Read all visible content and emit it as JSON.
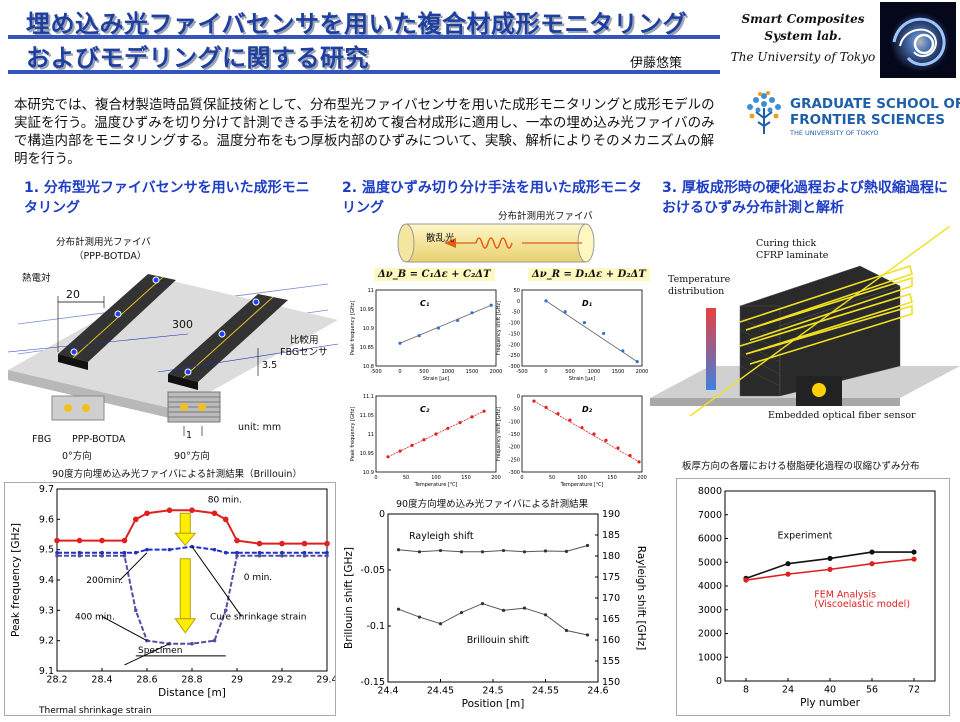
{
  "header": {
    "title_line1": "埋め込み光ファイバセンサを用いた複合材成形モニタリング",
    "title_line2": "およびモデリングに関する研究",
    "author": "伊藤悠策",
    "lab_line1": "Smart Composites",
    "lab_line2": "System lab.",
    "lab_line3": "The University of Tokyo"
  },
  "logo": {
    "line1": "GRADUATE SCHOOL OF",
    "line2": "FRONTIER SCIENCES",
    "line3": "THE UNIVERSITY OF TOKYO",
    "color": "#1f5fa8"
  },
  "intro": "本研究では、複合材製造時品質保証技術として、分布型光ファイバセンサを用いた成形モニタリングと成形モデルの実証を行う。温度ひずみを切り分けて計測できる手法を初めて複合材成形に適用し、一本の埋め込み光ファイバのみで構造内部をモニタリングする。温度分布をもつ厚板内部のひずみについて、実験、解析によりそのメカニズムの解明を行う。",
  "sections": {
    "s1_title": "1. 分布型光ファイバセンサを用いた成形モニタリング",
    "s2_title": "2. 温度ひずみ切り分け手法を用いた成形モニタリング",
    "s3_title": "3. 厚板成形時の硬化過程および熱収縮過程におけるひずみ分布計測と解析"
  },
  "fig1": {
    "label_fiber": "分布計測用光ファイバ",
    "label_fiber2": "（PPP-BOTDA）",
    "label_thermocouple": "熱電対",
    "dim_20": "20",
    "dim_300": "300",
    "dim_35": "3.5",
    "label_fbg_compare": "比較用",
    "label_fbg_compare2": "FBGセンサ",
    "label_fbg": "FBG",
    "label_ppp": "PPP-BOTDA",
    "dim_1": "1",
    "label_0deg": "0°方向",
    "label_90deg": "90°方向",
    "unit": "unit: mm"
  },
  "chart1_caption": "90度方向埋め込み光ファイバによる計測結果（Brillouin）",
  "chart2_caption": "90度方向埋め込み光ファイバによる計測結果",
  "chart3_caption": "板厚方向の各層における樹脂硬化過程の収縮ひずみ分布",
  "fig2": {
    "scatter_label": "散乱光",
    "fiber_label": "分布計測用光ファイバ",
    "eq1": "Δν_B = C₁Δε + C₂ΔT",
    "eq2": "Δν_R = D₁Δε + D₂ΔT"
  },
  "fig3": {
    "label_curing": "Curing thick",
    "label_curing2": "CFRP laminate",
    "label_temp": "Temperature",
    "label_temp2": "distribution",
    "label_sensor": "Embedded optical fiber sensor"
  },
  "chart_data": [
    {
      "id": "chart1",
      "type": "line",
      "xlabel": "Distance [m]",
      "ylabel": "Peak frequency [GHz]",
      "xlim": [
        28.2,
        29.4
      ],
      "ylim": [
        9.1,
        9.7
      ],
      "xticks": [
        "28.2",
        "28.4",
        "28.6",
        "28.8",
        "29",
        "29.2",
        "29.4"
      ],
      "yticks": [
        "9.1",
        "9.2",
        "9.3",
        "9.4",
        "9.5",
        "9.6",
        "9.7"
      ],
      "annotations": [
        "80 min.",
        "0 min.",
        "200min.",
        "400 min.",
        "Cure shrinkage strain",
        "Specimen",
        "Thermal shrinkage strain"
      ],
      "series": [
        {
          "color": "#e02020",
          "x": [
            28.2,
            28.3,
            28.4,
            28.5,
            28.55,
            28.6,
            28.7,
            28.8,
            28.9,
            28.95,
            29.0,
            29.1,
            29.2,
            29.3,
            29.4
          ],
          "values": [
            9.53,
            9.53,
            9.53,
            9.53,
            9.6,
            9.62,
            9.63,
            9.63,
            9.62,
            9.6,
            9.53,
            9.52,
            9.52,
            9.52,
            9.52
          ]
        },
        {
          "color": "#2030c0",
          "x": [
            28.2,
            28.3,
            28.4,
            28.5,
            28.55,
            28.6,
            28.7,
            28.8,
            28.9,
            28.95,
            29.0,
            29.1,
            29.2,
            29.3,
            29.4
          ],
          "values": [
            9.49,
            9.49,
            9.49,
            9.49,
            9.49,
            9.5,
            9.5,
            9.51,
            9.5,
            9.49,
            9.49,
            9.49,
            9.49,
            9.49,
            9.49
          ]
        },
        {
          "color": "#5050a0",
          "x": [
            28.2,
            28.3,
            28.4,
            28.5,
            28.55,
            28.6,
            28.7,
            28.8,
            28.9,
            28.95,
            29.0,
            29.1,
            29.2,
            29.3,
            29.4
          ],
          "values": [
            9.48,
            9.48,
            9.48,
            9.48,
            9.3,
            9.2,
            9.19,
            9.19,
            9.2,
            9.3,
            9.48,
            9.48,
            9.48,
            9.48,
            9.48
          ]
        }
      ]
    },
    {
      "id": "chart2",
      "type": "line",
      "xlabel": "Position [m]",
      "ylabel": "Brillouin shift [GHz]",
      "ylabel_right": "Rayleigh shift [GHz]",
      "xlim": [
        24.4,
        24.6
      ],
      "ylim": [
        -0.15,
        0.0
      ],
      "ylim_right": [
        150,
        190
      ],
      "xticks": [
        "24.4",
        "24.45",
        "24.5",
        "24.55",
        "24.6"
      ],
      "yticks": [
        "-0.15",
        "-0.1",
        "-0.05",
        "0"
      ],
      "yticks_right": [
        "150",
        "155",
        "160",
        "165",
        "170",
        "175",
        "180",
        "185",
        "190"
      ],
      "annotations": [
        "Rayleigh shift",
        "Brillouin shift"
      ],
      "series": [
        {
          "name": "Rayleigh shift",
          "axis": "right",
          "x": [
            24.41,
            24.43,
            24.45,
            24.47,
            24.49,
            24.51,
            24.53,
            24.55,
            24.57,
            24.59
          ],
          "values": [
            181.5,
            181.0,
            181.3,
            181.0,
            181.0,
            181.3,
            181.0,
            181.2,
            181.1,
            182.5
          ]
        },
        {
          "name": "Brillouin shift",
          "axis": "left",
          "x": [
            24.41,
            24.43,
            24.45,
            24.47,
            24.49,
            24.51,
            24.53,
            24.55,
            24.57,
            24.59
          ],
          "values": [
            -0.085,
            -0.092,
            -0.098,
            -0.088,
            -0.08,
            -0.086,
            -0.084,
            -0.09,
            -0.104,
            -0.108
          ]
        }
      ]
    },
    {
      "id": "chart3",
      "type": "line",
      "xlabel": "Ply number",
      "xlim": [
        0,
        80
      ],
      "ylim": [
        0,
        8000
      ],
      "xticks": [
        "8",
        "24",
        "40",
        "56",
        "72"
      ],
      "yticks": [
        "0",
        "1000",
        "2000",
        "3000",
        "4000",
        "5000",
        "6000",
        "7000",
        "8000"
      ],
      "series": [
        {
          "name": "Experiment",
          "color": "#111111",
          "x": [
            8,
            24,
            40,
            56,
            72
          ],
          "values": [
            4320,
            4940,
            5160,
            5430,
            5430
          ]
        },
        {
          "name": "FEM Analysis (Viscoelastic model)",
          "color": "#e02020",
          "x": [
            8,
            24,
            40,
            56,
            72
          ],
          "values": [
            4250,
            4500,
            4700,
            4940,
            5130
          ]
        }
      ],
      "legend_text_1": "FEM Analysis",
      "legend_text_2": "(Viscoelastic model)"
    },
    {
      "id": "mini_c1",
      "type": "scatter",
      "xlabel": "Strain [με]",
      "ylabel": "Peak frequency [GHz]",
      "label": "C₁",
      "xticks": [
        "-500",
        "0",
        "500",
        "1000",
        "1500",
        "2000"
      ],
      "yticks": [
        "10.8",
        "10.85",
        "10.9",
        "10.95",
        "11"
      ],
      "xlim": [
        -500,
        2000
      ],
      "ylim": [
        10.8,
        11.0
      ],
      "x": [
        0,
        400,
        800,
        1200,
        1500,
        1900
      ],
      "values": [
        10.86,
        10.88,
        10.9,
        10.92,
        10.94,
        10.96
      ]
    },
    {
      "id": "mini_d1",
      "type": "scatter",
      "xlabel": "Strain [με]",
      "ylabel": "Frequency shift [GHz]",
      "label": "D₁",
      "xticks": [
        "-500",
        "0",
        "500",
        "1000",
        "1500",
        "2000"
      ],
      "yticks": [
        "-300",
        "-250",
        "-200",
        "-150",
        "-100",
        "-50",
        "0",
        "50"
      ],
      "xlim": [
        -500,
        2000
      ],
      "ylim": [
        -300,
        50
      ],
      "x": [
        0,
        400,
        800,
        1200,
        1600,
        1900
      ],
      "values": [
        0,
        -50,
        -100,
        -150,
        -230,
        -280
      ]
    },
    {
      "id": "mini_c2",
      "type": "scatter",
      "xlabel": "Temperature [℃]",
      "ylabel": "Peak frequency [GHz]",
      "label": "C₂",
      "xticks": [
        "0",
        "50",
        "100",
        "150",
        "200"
      ],
      "yticks": [
        "10.9",
        "10.95",
        "11",
        "11.05",
        "11.1"
      ],
      "xlim": [
        0,
        200
      ],
      "ylim": [
        10.9,
        11.1
      ],
      "x": [
        20,
        40,
        60,
        80,
        100,
        120,
        140,
        160,
        180
      ],
      "values": [
        10.94,
        10.955,
        10.97,
        10.985,
        11.0,
        11.015,
        11.03,
        11.045,
        11.06
      ]
    },
    {
      "id": "mini_d2",
      "type": "scatter",
      "xlabel": "Temperature [℃]",
      "ylabel": "Frequency shift [GHz]",
      "label": "D₂",
      "xticks": [
        "0",
        "50",
        "100",
        "150",
        "200"
      ],
      "yticks": [
        "-300",
        "-250",
        "-200",
        "-150",
        "-100",
        "-50",
        "0"
      ],
      "xlim": [
        0,
        200
      ],
      "ylim": [
        -300,
        0
      ],
      "x": [
        20,
        40,
        60,
        80,
        100,
        120,
        140,
        160,
        180,
        195
      ],
      "values": [
        -20,
        -45,
        -70,
        -95,
        -125,
        -150,
        -175,
        -205,
        -235,
        -260
      ]
    }
  ]
}
